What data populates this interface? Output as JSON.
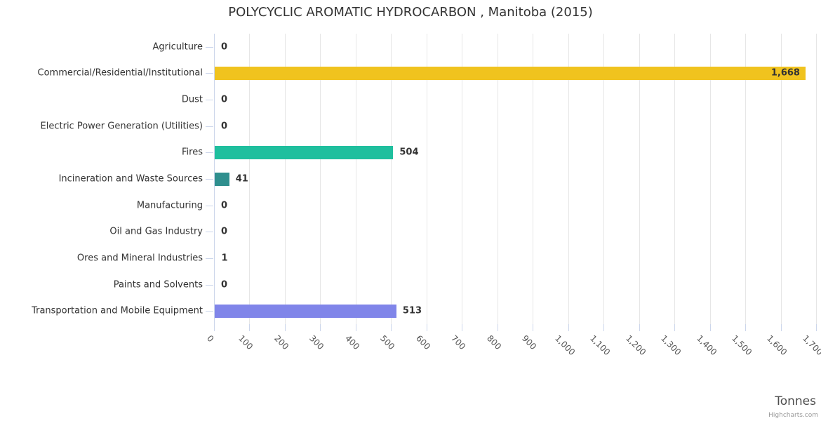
{
  "title": "POLYCYCLIC AROMATIC HYDROCARBON , Manitoba (2015)",
  "credit": "Highcharts.com",
  "chart_data": {
    "type": "bar",
    "orientation": "horizontal",
    "title": "POLYCYCLIC AROMATIC HYDROCARBON , Manitoba (2015)",
    "categories": [
      "Agriculture",
      "Commercial/Residential/Institutional",
      "Dust",
      "Electric Power Generation (Utilities)",
      "Fires",
      "Incineration and Waste Sources",
      "Manufacturing",
      "Oil and Gas Industry",
      "Ores and Mineral Industries",
      "Paints and Solvents",
      "Transportation and Mobile Equipment"
    ],
    "values": [
      0,
      1668,
      0,
      0,
      504,
      41,
      0,
      0,
      1,
      0,
      513
    ],
    "value_labels": [
      "0",
      "1,668",
      "0",
      "0",
      "504",
      "41",
      "0",
      "0",
      "1",
      "0",
      "513"
    ],
    "bar_colors": [
      null,
      "#f0c31e",
      null,
      null,
      "#1fbf9e",
      "#2f8f8e",
      null,
      null,
      null,
      null,
      "#8085e9"
    ],
    "xlabel": "Tonnes",
    "x_axis_ticks": [
      "0",
      "100",
      "200",
      "300",
      "400",
      "500",
      "600",
      "700",
      "800",
      "900",
      "1,000",
      "1,100",
      "1,200",
      "1,300",
      "1,400",
      "1,500",
      "1,600",
      "1,700"
    ],
    "xlim": [
      0,
      1700
    ],
    "tick_interval": 100,
    "grid": true,
    "legend": "none",
    "style_colors": {
      "grid": "#e6e6e6",
      "axis_line": "#ccd6eb",
      "title_text": "#333333",
      "label_text": "#333333",
      "data_label_text": "#333333",
      "axis_title_text": "#4d4d4d",
      "credit_text": "#999999"
    }
  }
}
